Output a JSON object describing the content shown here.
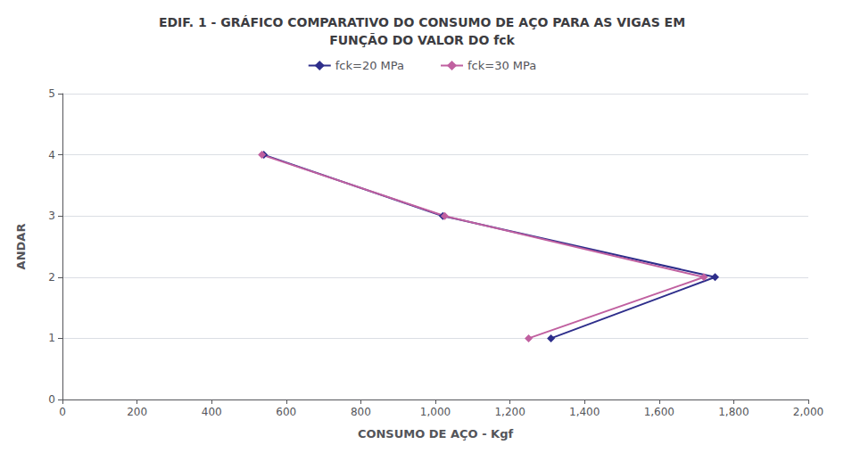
{
  "chart_data": {
    "type": "line",
    "title": "EDIF. 1 - GRÁFICO COMPARATIVO DO CONSUMO DE AÇO PARA AS VIGAS EM\nFUNÇÃO DO VALOR DO fck",
    "x_label": "CONSUMO DE AÇO - Kgf",
    "y_label": "ANDAR",
    "xlim": [
      0,
      2000
    ],
    "ylim": [
      0,
      5
    ],
    "xticks": [
      0,
      200,
      400,
      600,
      800,
      1000,
      1200,
      1400,
      1600,
      1800,
      2000
    ],
    "yticks": [
      0,
      1,
      2,
      3,
      4,
      5
    ],
    "grid": "y",
    "legend": "top",
    "marker": "diamond",
    "series": [
      {
        "name": "fck=20 MPa",
        "color": "#2E2E8B",
        "x": [
          540,
          1020,
          1750,
          1310
        ],
        "values": [
          4,
          3,
          2,
          1
        ]
      },
      {
        "name": "fck=30 MPa",
        "color": "#C060A0",
        "x": [
          535,
          1025,
          1720,
          1250
        ],
        "values": [
          4,
          3,
          2,
          1
        ]
      }
    ]
  }
}
